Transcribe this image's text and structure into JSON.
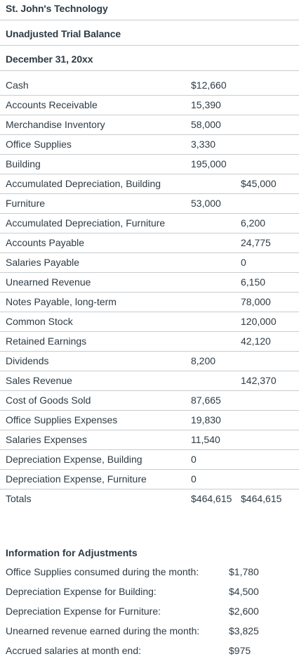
{
  "header": {
    "company": "St. John's Technology",
    "report": "Unadjusted Trial Balance",
    "date": "December 31, 20xx"
  },
  "trial_balance": {
    "rows": [
      {
        "account": "Cash",
        "debit": "$12,660",
        "credit": ""
      },
      {
        "account": "Accounts Receivable",
        "debit": "15,390",
        "credit": ""
      },
      {
        "account": "Merchandise Inventory",
        "debit": "58,000",
        "credit": ""
      },
      {
        "account": "Office Supplies",
        "debit": "3,330",
        "credit": ""
      },
      {
        "account": "Building",
        "debit": "195,000",
        "credit": ""
      },
      {
        "account": "Accumulated Depreciation, Building",
        "debit": "",
        "credit": "$45,000"
      },
      {
        "account": "Furniture",
        "debit": "53,000",
        "credit": ""
      },
      {
        "account": "Accumulated Depreciation, Furniture",
        "debit": "",
        "credit": "6,200"
      },
      {
        "account": "Accounts Payable",
        "debit": "",
        "credit": "24,775"
      },
      {
        "account": "Salaries Payable",
        "debit": "",
        "credit": "0"
      },
      {
        "account": "Unearned Revenue",
        "debit": "",
        "credit": "6,150"
      },
      {
        "account": "Notes Payable, long-term",
        "debit": "",
        "credit": "78,000"
      },
      {
        "account": "Common Stock",
        "debit": "",
        "credit": "120,000"
      },
      {
        "account": "Retained Earnings",
        "debit": "",
        "credit": "42,120"
      },
      {
        "account": "Dividends",
        "debit": "8,200",
        "credit": ""
      },
      {
        "account": "Sales Revenue",
        "debit": "",
        "credit": "142,370"
      },
      {
        "account": "Cost of Goods Sold",
        "debit": "87,665",
        "credit": ""
      },
      {
        "account": "Office Supplies Expenses",
        "debit": "19,830",
        "credit": ""
      },
      {
        "account": "Salaries Expenses",
        "debit": "11,540",
        "credit": ""
      },
      {
        "account": "Depreciation Expense, Building",
        "debit": "0",
        "credit": ""
      },
      {
        "account": "Depreciation Expense, Furniture",
        "debit": "0",
        "credit": ""
      },
      {
        "account": "Totals",
        "debit": "$464,615",
        "credit": "$464,615"
      }
    ]
  },
  "adjustments": {
    "title": "Information for Adjustments",
    "items": [
      {
        "label": "Office Supplies consumed during the month:",
        "value": "$1,780"
      },
      {
        "label": "Depreciation Expense for Building:",
        "value": "$4,500"
      },
      {
        "label": "Depreciation Expense for Furniture:",
        "value": "$2,600"
      },
      {
        "label": "Unearned revenue earned during the month:",
        "value": "$3,825"
      },
      {
        "label": "Accrued salaries at month end:",
        "value": "$975"
      }
    ]
  }
}
